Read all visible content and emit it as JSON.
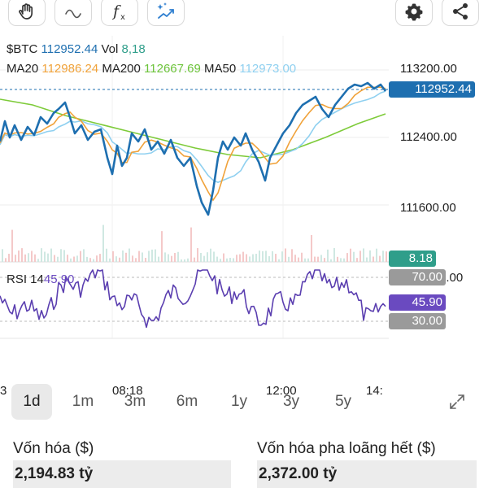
{
  "toolbar": {
    "buttons": [
      {
        "name": "hand-tool-icon"
      },
      {
        "name": "draw-line-icon"
      },
      {
        "name": "function-icon"
      },
      {
        "name": "magic-indicator-icon"
      },
      {
        "name": "gear-icon"
      },
      {
        "name": "share-icon"
      }
    ]
  },
  "legend": {
    "symbol": "$BTC",
    "price": "112952.44",
    "vol_label": "Vol",
    "vol_value": "8,18",
    "ma20_label": "MA20",
    "ma20_value": "112986.24",
    "ma200_label": "MA200",
    "ma200_value": "112667.69",
    "ma50_label": "MA50",
    "ma50_value": "112973.00"
  },
  "price_axis": {
    "ticks": [
      "113200.00",
      "112400.00",
      "111600.00"
    ],
    "current_tag": "112952.44",
    "volume_tag": "8.18",
    "partial_tick": "0.00"
  },
  "rsi": {
    "label": "RSI 14",
    "value": "45.90",
    "upper": "70.00",
    "lower": "30.00"
  },
  "time_axis": [
    "3",
    "08:18",
    "12:00",
    "14:"
  ],
  "ranges": {
    "items": [
      "1d",
      "1m",
      "3m",
      "6m",
      "1y",
      "3y",
      "5y"
    ],
    "active_index": 0
  },
  "stats": {
    "market_cap_label": "Vốn hóa ($)",
    "market_cap_value": "2,194.83 tỷ",
    "fdv_label": "Vốn hóa pha loãng hết ($)",
    "fdv_value": "2,372.00 tỷ"
  },
  "colors": {
    "price_line": "#1e6fb0",
    "ma20": "#f0a23a",
    "ma200": "#7ecb3a",
    "ma50": "#8fd0f0",
    "rsi_line": "#5b3fb0",
    "rsi_tag": "#6a4ac0",
    "current_tag": "#1e6fb0",
    "volume_tag": "#2f9e8a",
    "band_tag": "#9a9a9a"
  }
}
